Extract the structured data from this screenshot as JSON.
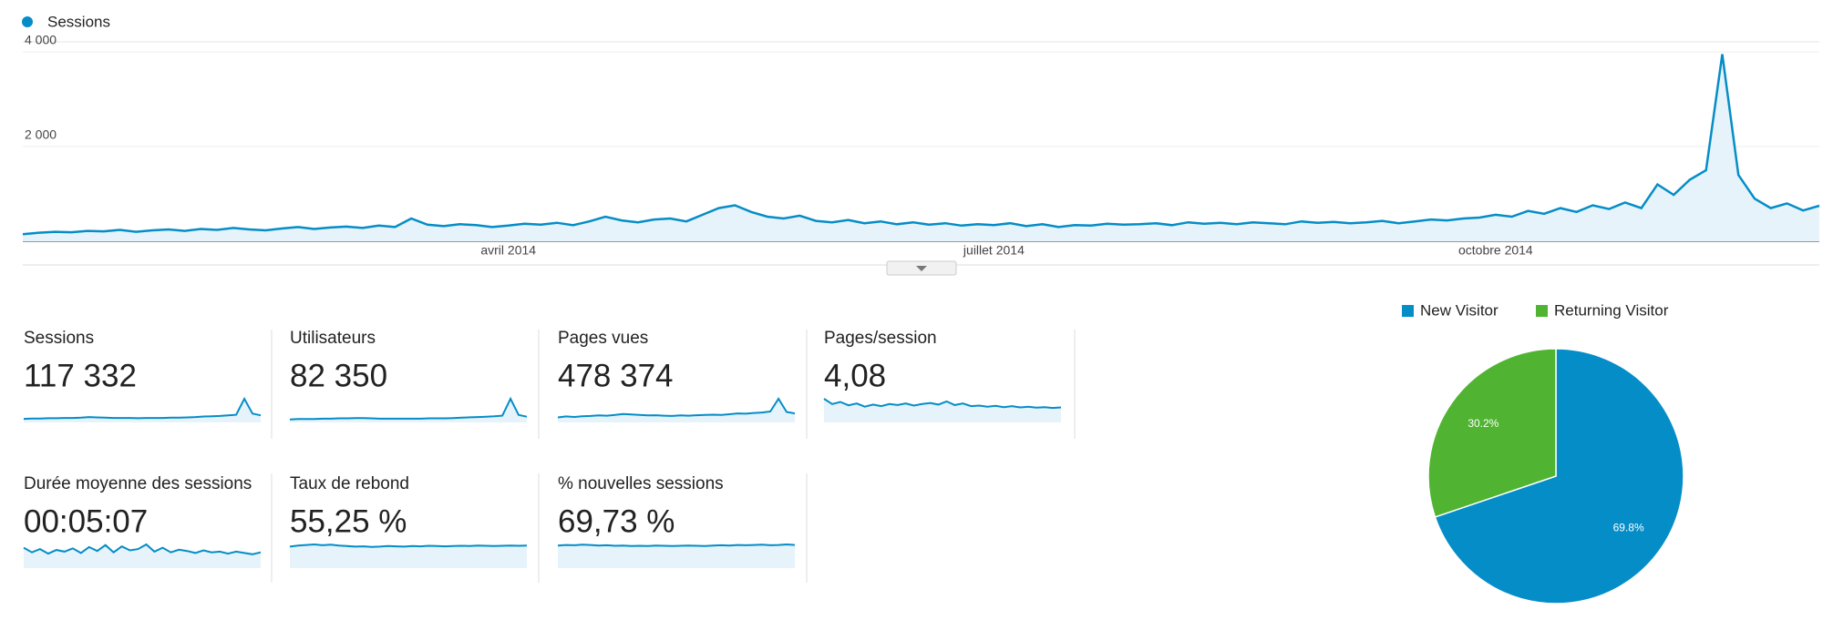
{
  "chart_data": [
    {
      "type": "line",
      "categories": [
        null,
        null,
        null,
        null,
        null,
        null,
        null,
        null,
        null,
        null,
        null,
        null,
        null,
        null,
        null,
        null,
        null,
        null,
        null,
        null,
        null,
        null,
        null,
        null,
        null,
        null,
        null,
        null,
        null,
        null,
        "avril 2014",
        null,
        null,
        null,
        null,
        null,
        null,
        null,
        null,
        null,
        null,
        null,
        null,
        null,
        null,
        null,
        null,
        null,
        null,
        null,
        null,
        null,
        null,
        null,
        null,
        null,
        null,
        null,
        null,
        null,
        "juillet 2014",
        null,
        null,
        null,
        null,
        null,
        null,
        null,
        null,
        null,
        null,
        null,
        null,
        null,
        null,
        null,
        null,
        null,
        null,
        null,
        null,
        null,
        null,
        null,
        null,
        null,
        null,
        null,
        null,
        null,
        null,
        "octobre 2014",
        null,
        null,
        null,
        null,
        null,
        null,
        null,
        null,
        null,
        null,
        null,
        null,
        null,
        null,
        null,
        null,
        null,
        null,
        null,
        null
      ],
      "series": [
        {
          "name": "Sessions",
          "color": "#058dc7",
          "values": [
            150,
            180,
            200,
            190,
            220,
            210,
            240,
            200,
            230,
            250,
            220,
            260,
            240,
            280,
            250,
            230,
            270,
            300,
            260,
            290,
            310,
            280,
            330,
            300,
            480,
            350,
            320,
            360,
            340,
            300,
            330,
            370,
            350,
            390,
            340,
            420,
            520,
            440,
            400,
            460,
            480,
            420,
            560,
            700,
            760,
            620,
            520,
            480,
            540,
            430,
            400,
            450,
            380,
            420,
            360,
            400,
            350,
            380,
            330,
            360,
            340,
            380,
            320,
            360,
            300,
            340,
            330,
            370,
            350,
            360,
            380,
            340,
            400,
            370,
            390,
            360,
            400,
            380,
            360,
            420,
            390,
            410,
            380,
            400,
            430,
            380,
            420,
            460,
            440,
            480,
            500,
            560,
            520,
            640,
            580,
            700,
            620,
            760,
            680,
            820,
            700,
            1200,
            980,
            1300,
            1500,
            3950,
            1400,
            900,
            700,
            800,
            650,
            750
          ]
        }
      ],
      "ylim": [
        0,
        4000
      ],
      "yticks": [
        {
          "value": 2000,
          "label": "2 000"
        },
        {
          "value": 4000,
          "label": "4 000"
        }
      ],
      "grid": true
    },
    {
      "type": "pie",
      "categories": [
        "New Visitor",
        "Returning Visitor"
      ],
      "values": [
        69.8,
        30.2
      ],
      "value_labels": [
        "69.8%",
        "30.2%"
      ],
      "colors": [
        "#058dc7",
        "#50b432"
      ]
    }
  ],
  "scorecards": [
    {
      "label": "Sessions",
      "value": "117 332",
      "sparkline": [
        12,
        13,
        13,
        14,
        14,
        15,
        15,
        16,
        18,
        17,
        16,
        15,
        15,
        15,
        14,
        15,
        15,
        15,
        16,
        16,
        17,
        18,
        20,
        21,
        22,
        24,
        26,
        80,
        30,
        24
      ]
    },
    {
      "label": "Utilisateurs",
      "value": "82 350",
      "sparkline": [
        9,
        10,
        10,
        10,
        11,
        11,
        12,
        12,
        13,
        13,
        12,
        11,
        11,
        11,
        11,
        11,
        11,
        12,
        12,
        12,
        13,
        14,
        15,
        16,
        17,
        18,
        20,
        70,
        22,
        17
      ]
    },
    {
      "label": "Pages vues",
      "value": "478 374",
      "sparkline": [
        20,
        24,
        22,
        25,
        26,
        28,
        27,
        30,
        34,
        32,
        30,
        28,
        29,
        27,
        26,
        28,
        27,
        29,
        30,
        31,
        30,
        33,
        36,
        35,
        38,
        40,
        44,
        95,
        42,
        36
      ]
    },
    {
      "label": "Pages/session",
      "value": "4,08",
      "sparkline": [
        90,
        70,
        78,
        65,
        72,
        60,
        68,
        62,
        70,
        66,
        72,
        64,
        70,
        74,
        68,
        80,
        66,
        72,
        62,
        64,
        60,
        63,
        58,
        62,
        57,
        60,
        56,
        58,
        55,
        57
      ]
    },
    {
      "label": "Durée moyenne des sessions",
      "value": "00:05:07",
      "sparkline": [
        62,
        48,
        58,
        44,
        55,
        50,
        60,
        46,
        64,
        52,
        70,
        48,
        66,
        54,
        58,
        72,
        50,
        62,
        48,
        56,
        52,
        46,
        54,
        48,
        50,
        44,
        50,
        46,
        42,
        48
      ]
    },
    {
      "label": "Taux de rebond",
      "value": "55,25 %",
      "sparkline": [
        80,
        84,
        86,
        88,
        85,
        87,
        84,
        82,
        80,
        81,
        79,
        80,
        82,
        81,
        80,
        82,
        81,
        83,
        82,
        81,
        82,
        83,
        82,
        84,
        83,
        82,
        83,
        84,
        83,
        84
      ]
    },
    {
      "label": "% nouvelles sessions",
      "value": "69,73 %",
      "sparkline": [
        84,
        86,
        85,
        87,
        86,
        84,
        85,
        83,
        84,
        82,
        83,
        82,
        84,
        83,
        82,
        83,
        84,
        83,
        82,
        84,
        85,
        84,
        86,
        85,
        86,
        87,
        85,
        86,
        88,
        86
      ]
    }
  ]
}
